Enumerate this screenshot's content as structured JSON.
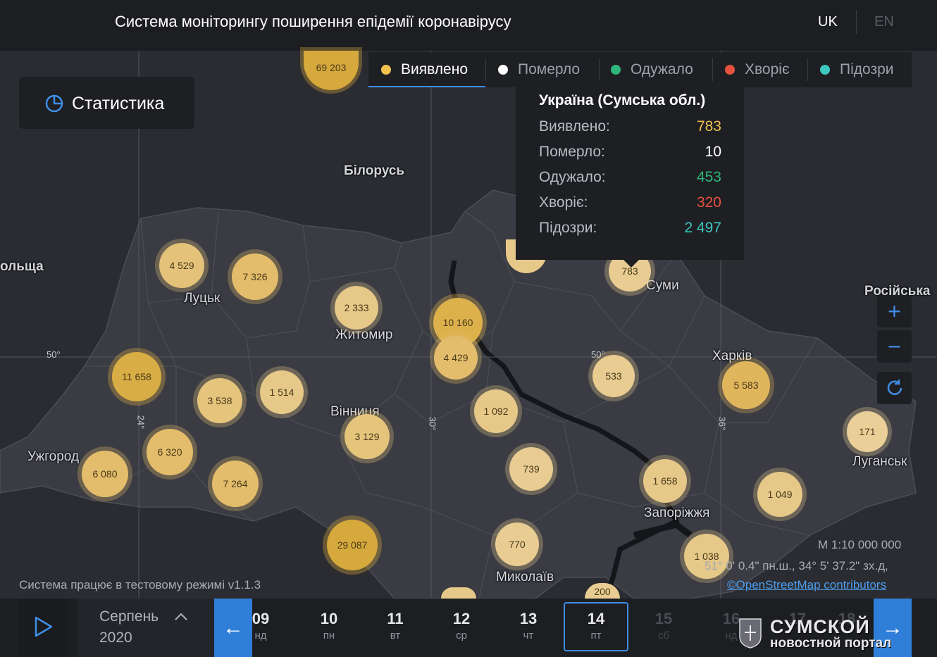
{
  "header": {
    "title": "Система моніторингу поширення епідемії коронавірусу",
    "lang_uk": "UK",
    "lang_en": "EN"
  },
  "stats_button": {
    "label": "Статистика"
  },
  "tabs": [
    {
      "label": "Виявлено",
      "color": "#f2c14e",
      "active": true
    },
    {
      "label": "Померло",
      "color": "#ffffff",
      "active": false
    },
    {
      "label": "Одужало",
      "color": "#2fb67a",
      "active": false
    },
    {
      "label": "Хворіє",
      "color": "#e5533d",
      "active": false
    },
    {
      "label": "Підозри",
      "color": "#3ec9c0",
      "active": false
    }
  ],
  "tooltip": {
    "title": "Україна (Сумська обл.)",
    "rows": [
      {
        "label": "Виявлено:",
        "value": "783",
        "color": "#f2c14e"
      },
      {
        "label": "Померло:",
        "value": "10",
        "color": "#ffffff"
      },
      {
        "label": "Одужало:",
        "value": "453",
        "color": "#2fb67a"
      },
      {
        "label": "Хворіє:",
        "value": "320",
        "color": "#e5533d"
      },
      {
        "label": "Підозри:",
        "value": "2 497",
        "color": "#3ec9c0"
      }
    ]
  },
  "map": {
    "places": [
      "Білорусь",
      "ольща",
      "Луцьк",
      "Житомир",
      "Суми",
      "Російська",
      "Харків",
      "Вінниця",
      "Ужгород",
      "Луганськ",
      "Запоріжжя",
      "Миколаїв"
    ],
    "grid_labels": [
      "50°",
      "50°",
      "24°",
      "30°",
      "36°"
    ],
    "clusters": [
      "69 203",
      "4 529",
      "7 326",
      "2 333",
      "10 160",
      "4 429",
      "11 658",
      "3 538",
      "1 514",
      "3 129",
      "1 092",
      "533",
      "5 583",
      "171",
      "6 320",
      "6 080",
      "7 264",
      "739",
      "1 658",
      "1 049",
      "29 087",
      "770",
      "1 038",
      "783",
      "200"
    ],
    "scale": "М 1:10 000 000",
    "coords": "51° 0' 0.4\" пн.ш., 34° 5' 37.2\" зх.д,",
    "attribution": "©OpenStreetMap contributors",
    "test_note": "Система працює в тестовому режимі v1.1.3"
  },
  "timeline": {
    "month": "Серпень",
    "year": "2020",
    "days": [
      {
        "n": "09",
        "w": "нд"
      },
      {
        "n": "10",
        "w": "пн"
      },
      {
        "n": "11",
        "w": "вт"
      },
      {
        "n": "12",
        "w": "ср"
      },
      {
        "n": "13",
        "w": "чт"
      },
      {
        "n": "14",
        "w": "пт"
      },
      {
        "n": "15",
        "w": "сб"
      },
      {
        "n": "16",
        "w": "нд"
      },
      {
        "n": "17",
        "w": ""
      },
      {
        "n": "18",
        "w": ""
      }
    ],
    "selected_day": "14"
  },
  "watermark": {
    "line1": "СУМСКОЙ",
    "line2": "новостной портал"
  }
}
